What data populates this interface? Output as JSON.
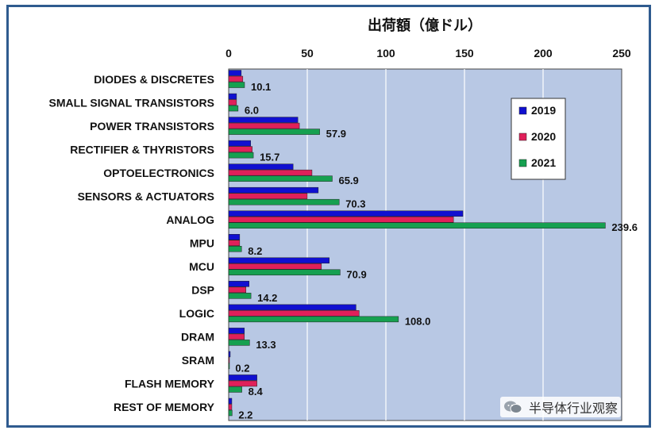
{
  "chart_data": {
    "type": "bar",
    "orientation": "horizontal",
    "title": "出荷額（億ドル）",
    "categories": [
      "DIODES & DISCRETES",
      "SMALL SIGNAL TRANSISTORS",
      "POWER TRANSISTORS",
      "RECTIFIER & THYRISTORS",
      "OPTOELECTRONICS",
      "SENSORS & ACTUATORS",
      "ANALOG",
      "MPU",
      "MCU",
      "DSP",
      "LOGIC",
      "DRAM",
      "SRAM",
      "FLASH MEMORY",
      "REST OF MEMORY"
    ],
    "series": [
      {
        "name": "2019",
        "color": "#1010d0",
        "values": [
          8,
          5,
          44,
          14,
          41,
          57,
          149,
          7,
          64,
          13,
          81,
          10,
          1,
          18,
          2
        ]
      },
      {
        "name": "2020",
        "color": "#e0205a",
        "values": [
          9,
          5,
          45,
          15,
          53,
          50,
          143,
          7,
          59,
          11,
          83,
          10,
          0.5,
          18,
          2
        ]
      },
      {
        "name": "2021",
        "color": "#16a050",
        "values": [
          10.1,
          6.0,
          57.9,
          15.7,
          65.9,
          70.3,
          239.6,
          8.2,
          70.9,
          14.2,
          108.0,
          13.3,
          0.2,
          8.4,
          2.2
        ]
      }
    ],
    "data_labels": [
      "10.1",
      "6.0",
      "57.9",
      "15.7",
      "65.9",
      "70.3",
      "239.6",
      "8.2",
      "70.9",
      "14.2",
      "108.0",
      "13.3",
      "0.2",
      "8.4",
      "2.2"
    ],
    "xlim": [
      0,
      250
    ],
    "xticks": [
      "0",
      "50",
      "100",
      "150",
      "200",
      "250"
    ],
    "xaxis_position": "top",
    "grid": true,
    "plot_background": "#b8c8e4",
    "legend_position": "right",
    "legend": [
      "2019",
      "2020",
      "2021"
    ]
  },
  "watermark": {
    "text": "半导体行业观察",
    "icon": "wechat-icon"
  }
}
